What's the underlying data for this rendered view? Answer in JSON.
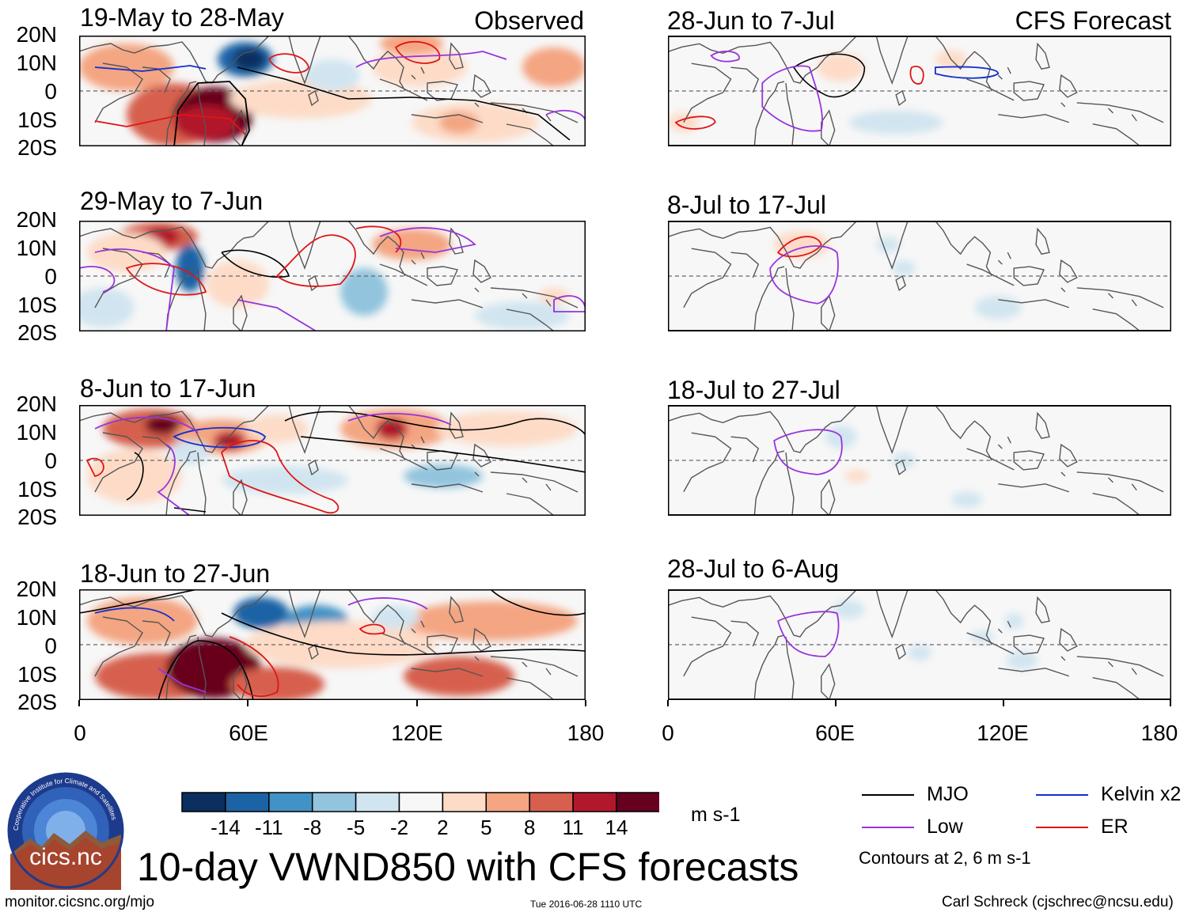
{
  "figure": {
    "title": "10-day VWND850 with CFS forecasts",
    "observed_label": "Observed",
    "forecast_label": "CFS Forecast",
    "website": "monitor.cicsnc.org/mjo",
    "timestamp": "Tue 2016-06-28 1110 UTC",
    "author": "Carl Schreck (cjschrec@ncsu.edu)"
  },
  "logo": {
    "name": "cics.nc",
    "ring_text": "Cooperative Institute for Climate and Satellites"
  },
  "panels": {
    "observed": [
      "19-May to 28-May",
      "29-May to 7-Jun",
      "8-Jun to 17-Jun",
      "18-Jun to 27-Jun"
    ],
    "forecast": [
      "28-Jun to 7-Jul",
      "8-Jul to 17-Jul",
      "18-Jul to 27-Jul",
      "28-Jul to 6-Aug"
    ]
  },
  "axes": {
    "lat_labels": [
      "20N",
      "10N",
      "0",
      "10S",
      "20S"
    ],
    "lon_labels": [
      "0",
      "60E",
      "120E",
      "180"
    ]
  },
  "colorbar": {
    "ticks": [
      "-14",
      "-11",
      "-8",
      "-5",
      "-2",
      "2",
      "5",
      "8",
      "11",
      "14"
    ],
    "units": "m s-1",
    "colors": [
      "#0b2f5e",
      "#1c63a6",
      "#4392c5",
      "#92c4de",
      "#d1e5f0",
      "#f7f7f7",
      "#fddbc7",
      "#f4a582",
      "#d6604d",
      "#b2182b",
      "#67001f"
    ]
  },
  "legend": {
    "items": [
      {
        "label": "MJO",
        "color": "#000000"
      },
      {
        "label": "Kelvin x2",
        "color": "#1030d0"
      },
      {
        "label": "Low",
        "color": "#9933dd"
      },
      {
        "label": "ER",
        "color": "#e01515"
      }
    ],
    "contour_note": "Contours at 2, 6 m s-1"
  }
}
